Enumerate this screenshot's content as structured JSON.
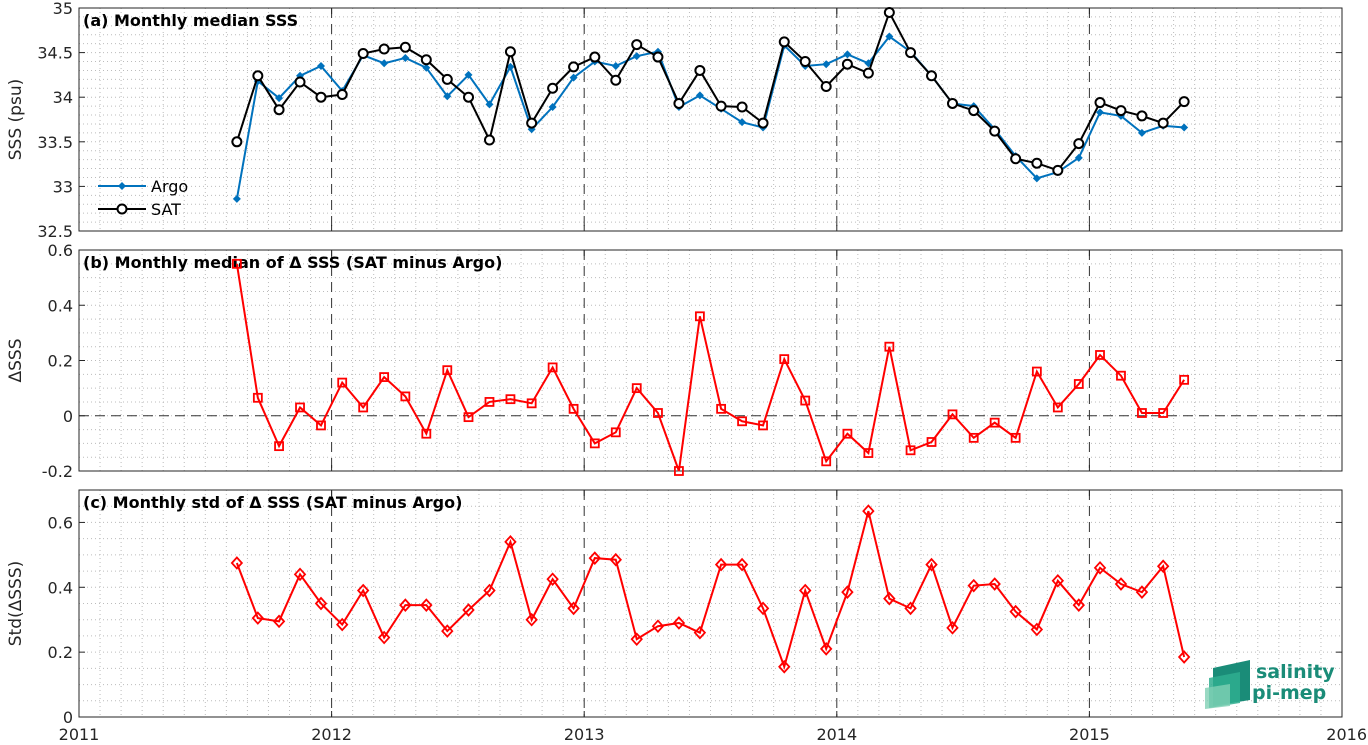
{
  "colors": {
    "argo": "#0072bd",
    "sat": "#000000",
    "delta": "#ff0000",
    "grid": "#bcbcbc"
  },
  "logo": {
    "line1": "salinity",
    "line2": "pi-mep",
    "color": "#1a8c78"
  },
  "x_ticks": [
    "2011",
    "2012",
    "2013",
    "2014",
    "2015",
    "2016"
  ],
  "chart_data": [
    {
      "type": "line",
      "title": "(a) Monthly median SSS",
      "xlabel": "",
      "ylabel": "SSS (psu)",
      "xlim": [
        2011,
        2016
      ],
      "ylim": [
        32.5,
        35
      ],
      "y_ticks": [
        "32.5",
        "33",
        "33.5",
        "34",
        "34.5",
        "35"
      ],
      "grid": true,
      "legend_position": "left",
      "x": [
        2011.625,
        2011.708,
        2011.792,
        2011.875,
        2011.958,
        2012.042,
        2012.125,
        2012.208,
        2012.292,
        2012.375,
        2012.458,
        2012.542,
        2012.625,
        2012.708,
        2012.792,
        2012.875,
        2012.958,
        2013.042,
        2013.125,
        2013.208,
        2013.292,
        2013.375,
        2013.458,
        2013.542,
        2013.625,
        2013.708,
        2013.792,
        2013.875,
        2013.958,
        2014.042,
        2014.125,
        2014.208,
        2014.292,
        2014.375,
        2014.458,
        2014.542,
        2014.625,
        2014.708,
        2014.792,
        2014.875,
        2014.958,
        2015.042,
        2015.125,
        2015.208,
        2015.292,
        2015.375
      ],
      "series": [
        {
          "name": "Argo",
          "marker": "dot",
          "values": [
            32.86,
            34.18,
            33.99,
            34.24,
            34.35,
            34.07,
            34.47,
            34.38,
            34.44,
            34.33,
            34.01,
            34.25,
            33.92,
            34.34,
            33.64,
            33.89,
            34.22,
            34.4,
            34.35,
            34.46,
            34.51,
            33.89,
            34.02,
            33.87,
            33.72,
            33.66,
            34.58,
            34.35,
            34.37,
            34.48,
            34.38,
            34.68,
            34.51,
            34.24,
            33.93,
            33.9,
            33.64,
            33.34,
            33.09,
            33.16,
            33.32,
            33.83,
            33.79,
            33.6,
            33.68,
            33.66
          ]
        },
        {
          "name": "SAT",
          "marker": "circle",
          "values": [
            33.5,
            34.24,
            33.86,
            34.17,
            34.0,
            34.03,
            34.49,
            34.54,
            34.56,
            34.42,
            34.2,
            34.0,
            33.52,
            34.51,
            33.71,
            34.1,
            34.34,
            34.45,
            34.19,
            34.59,
            34.45,
            33.93,
            34.3,
            33.9,
            33.89,
            33.71,
            34.62,
            34.4,
            34.12,
            34.37,
            34.27,
            34.95,
            34.5,
            34.24,
            33.93,
            33.85,
            33.62,
            33.31,
            33.26,
            33.18,
            33.48,
            33.94,
            33.85,
            33.79,
            33.71,
            33.95
          ]
        }
      ]
    },
    {
      "type": "line",
      "title": "(b) Monthly median of Δ SSS (SAT minus Argo)",
      "xlabel": "",
      "ylabel": "ΔSSS",
      "xlim": [
        2011,
        2016
      ],
      "ylim": [
        -0.2,
        0.6
      ],
      "y_ticks": [
        "-0.2",
        "0",
        "0.2",
        "0.4",
        "0.6"
      ],
      "grid": true,
      "zero_line": true,
      "x": [
        2011.625,
        2011.708,
        2011.792,
        2011.875,
        2011.958,
        2012.042,
        2012.125,
        2012.208,
        2012.292,
        2012.375,
        2012.458,
        2012.542,
        2012.625,
        2012.708,
        2012.792,
        2012.875,
        2012.958,
        2013.042,
        2013.125,
        2013.208,
        2013.292,
        2013.375,
        2013.458,
        2013.542,
        2013.625,
        2013.708,
        2013.792,
        2013.875,
        2013.958,
        2014.042,
        2014.125,
        2014.208,
        2014.292,
        2014.375,
        2014.458,
        2014.542,
        2014.625,
        2014.708,
        2014.792,
        2014.875,
        2014.958,
        2015.042,
        2015.125,
        2015.208,
        2015.292,
        2015.375
      ],
      "series": [
        {
          "name": "",
          "marker": "square",
          "values": [
            0.55,
            0.065,
            -0.11,
            0.03,
            -0.035,
            0.12,
            0.03,
            0.14,
            0.07,
            -0.065,
            0.165,
            -0.005,
            0.05,
            0.06,
            0.045,
            0.175,
            0.025,
            -0.1,
            -0.06,
            0.1,
            0.01,
            -0.2,
            0.36,
            0.025,
            -0.02,
            -0.035,
            0.205,
            0.055,
            -0.165,
            -0.065,
            -0.135,
            0.25,
            -0.125,
            -0.095,
            0.005,
            -0.08,
            -0.025,
            -0.08,
            0.16,
            0.03,
            0.115,
            0.22,
            0.145,
            0.01,
            0.01,
            0.13
          ]
        }
      ]
    },
    {
      "type": "line",
      "title": "(c) Monthly std of Δ SSS (SAT minus Argo)",
      "xlabel": "",
      "ylabel": "Std(ΔSSS)",
      "xlim": [
        2011,
        2016
      ],
      "ylim": [
        0,
        0.7
      ],
      "y_ticks": [
        "0",
        "0.2",
        "0.4",
        "0.6"
      ],
      "grid": true,
      "x": [
        2011.625,
        2011.708,
        2011.792,
        2011.875,
        2011.958,
        2012.042,
        2012.125,
        2012.208,
        2012.292,
        2012.375,
        2012.458,
        2012.542,
        2012.625,
        2012.708,
        2012.792,
        2012.875,
        2012.958,
        2013.042,
        2013.125,
        2013.208,
        2013.292,
        2013.375,
        2013.458,
        2013.542,
        2013.625,
        2013.708,
        2013.792,
        2013.875,
        2013.958,
        2014.042,
        2014.125,
        2014.208,
        2014.292,
        2014.375,
        2014.458,
        2014.542,
        2014.625,
        2014.708,
        2014.792,
        2014.875,
        2014.958,
        2015.042,
        2015.125,
        2015.208,
        2015.292,
        2015.375
      ],
      "series": [
        {
          "name": "",
          "marker": "diamond",
          "values": [
            0.475,
            0.305,
            0.295,
            0.44,
            0.35,
            0.285,
            0.39,
            0.245,
            0.345,
            0.345,
            0.265,
            0.33,
            0.39,
            0.54,
            0.3,
            0.425,
            0.335,
            0.49,
            0.485,
            0.24,
            0.28,
            0.29,
            0.26,
            0.47,
            0.47,
            0.335,
            0.155,
            0.39,
            0.21,
            0.385,
            0.635,
            0.365,
            0.335,
            0.47,
            0.275,
            0.405,
            0.41,
            0.325,
            0.27,
            0.42,
            0.345,
            0.46,
            0.41,
            0.385,
            0.465,
            0.185
          ]
        }
      ]
    }
  ]
}
